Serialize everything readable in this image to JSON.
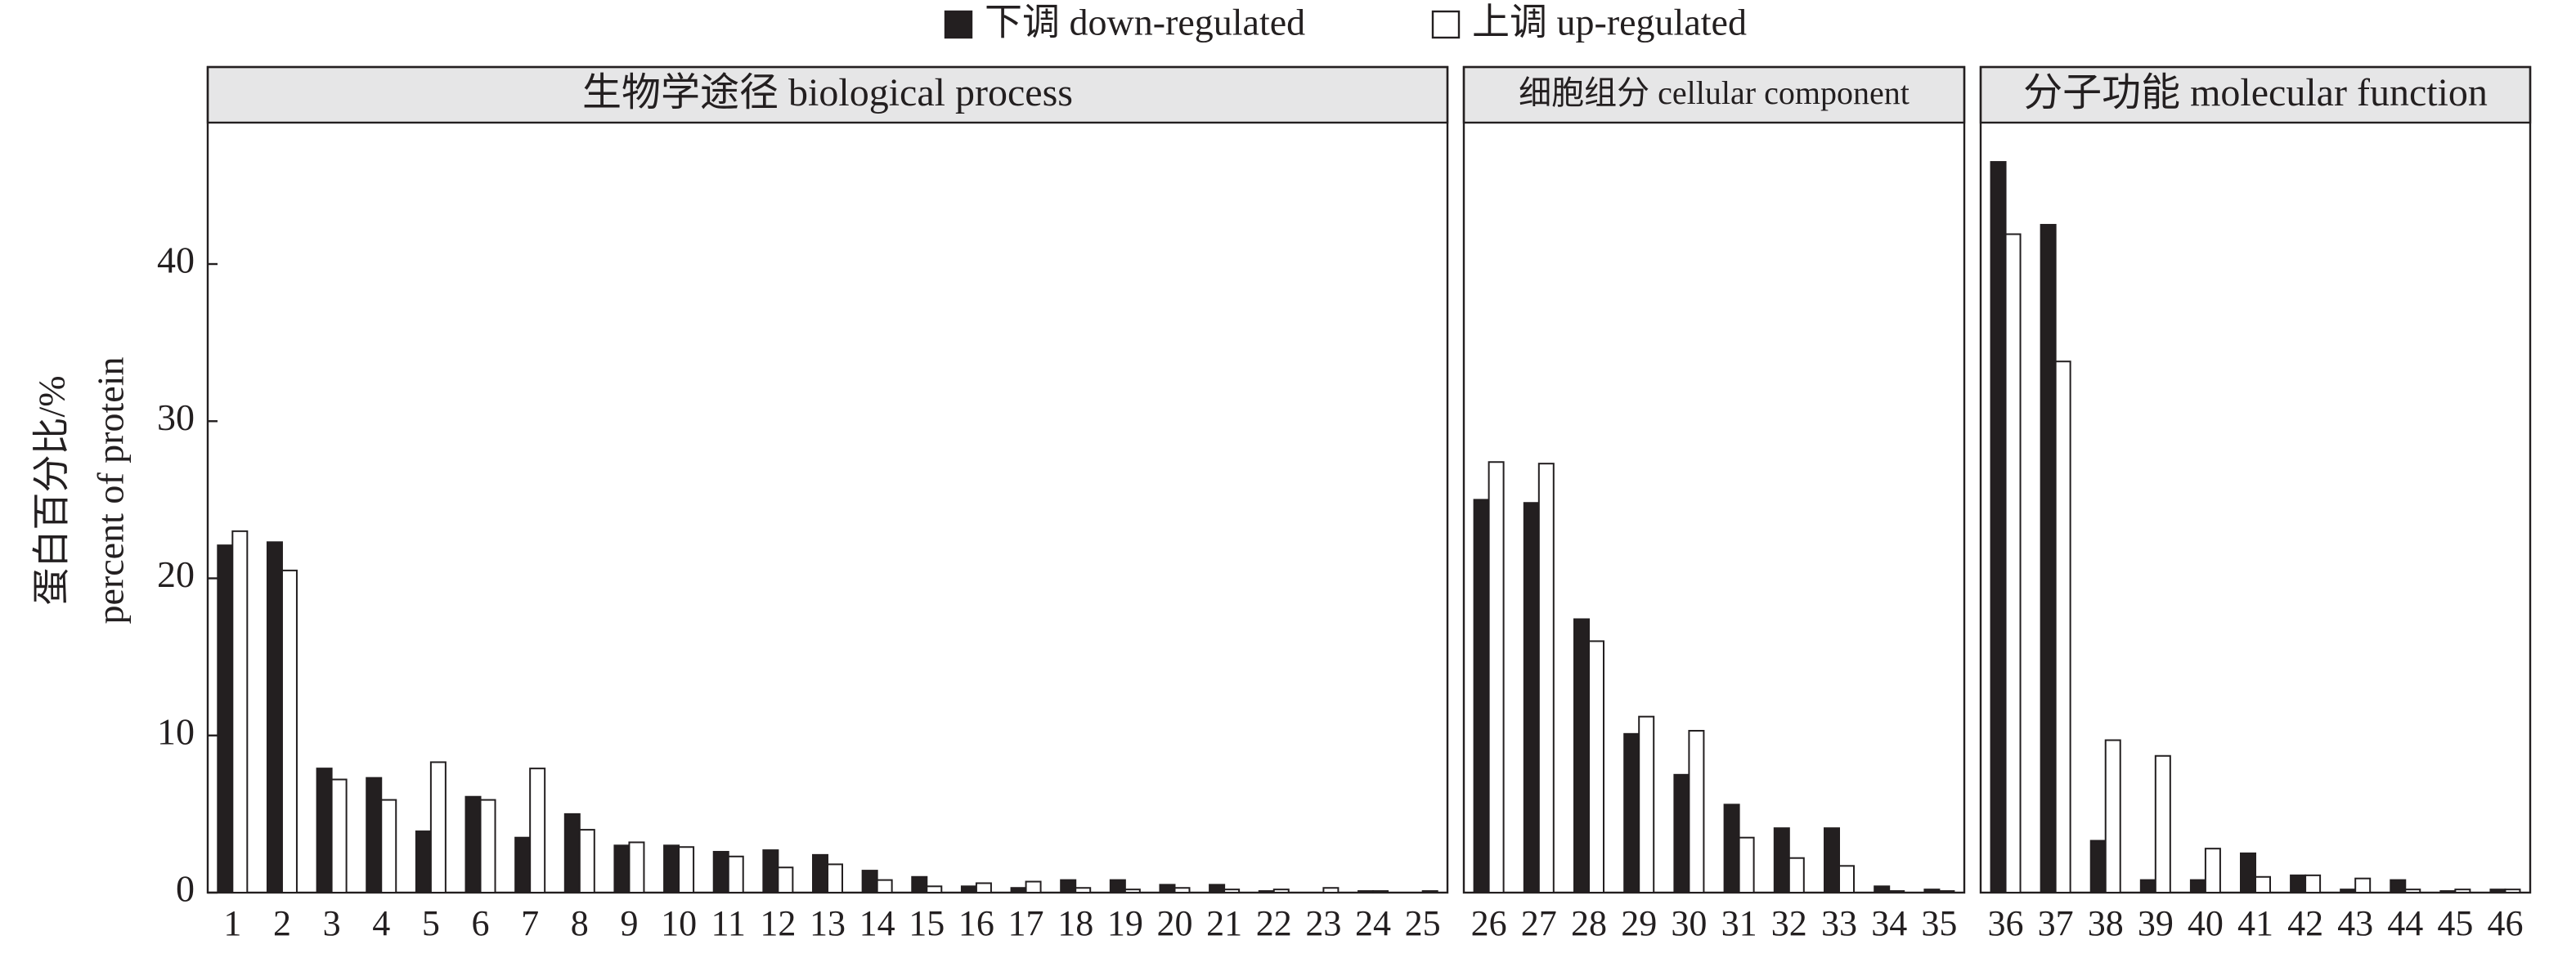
{
  "chart_data": {
    "type": "bar",
    "y_label": [
      "蛋白百分比/%",
      "percent of protein"
    ],
    "ylim": [
      0,
      49
    ],
    "yticks": [
      0,
      10,
      20,
      30,
      40
    ],
    "series": [
      {
        "name": "下调 down-regulated",
        "color": "#231f20"
      },
      {
        "name": "上调 up-regulated",
        "color": "#ffffff"
      }
    ],
    "panels": [
      {
        "title": "生物学途径 biological process",
        "categories": [
          "1",
          "2",
          "3",
          "4",
          "5",
          "6",
          "7",
          "8",
          "9",
          "10",
          "11",
          "12",
          "13",
          "14",
          "15",
          "16",
          "17",
          "18",
          "19",
          "20",
          "21",
          "22",
          "23",
          "24",
          "25"
        ],
        "series": [
          {
            "values": [
              22.1,
              22.3,
              7.9,
              7.3,
              3.9,
              6.1,
              3.5,
              5.0,
              3.0,
              3.0,
              2.6,
              2.7,
              2.4,
              1.4,
              1.0,
              0.4,
              0.3,
              0.8,
              0.8,
              0.5,
              0.5,
              0.1,
              0.0,
              0.1,
              0.0
            ]
          },
          {
            "values": [
              23.0,
              20.5,
              7.2,
              5.9,
              8.3,
              5.9,
              7.9,
              4.0,
              3.2,
              2.9,
              2.3,
              1.6,
              1.8,
              0.8,
              0.4,
              0.6,
              0.7,
              0.3,
              0.2,
              0.3,
              0.2,
              0.2,
              0.3,
              0.1,
              0.1
            ]
          }
        ]
      },
      {
        "title": "细胞组分 cellular component",
        "categories": [
          "26",
          "27",
          "28",
          "29",
          "30",
          "31",
          "32",
          "33",
          "34",
          "35"
        ],
        "series": [
          {
            "values": [
              25.0,
              24.8,
              17.4,
              10.1,
              7.5,
              5.6,
              4.1,
              4.1,
              0.4,
              0.2
            ]
          },
          {
            "values": [
              27.4,
              27.3,
              16.0,
              11.2,
              10.3,
              3.5,
              2.2,
              1.7,
              0.1,
              0.1
            ]
          }
        ]
      },
      {
        "title": "分子功能 molecular function",
        "categories": [
          "36",
          "37",
          "38",
          "39",
          "40",
          "41",
          "42",
          "43",
          "44",
          "45",
          "46"
        ],
        "series": [
          {
            "values": [
              46.5,
              42.5,
              3.3,
              0.8,
              0.8,
              2.5,
              1.1,
              0.2,
              0.8,
              0.1,
              0.2
            ]
          },
          {
            "values": [
              41.9,
              33.8,
              9.7,
              8.7,
              2.8,
              1.0,
              1.1,
              0.9,
              0.2,
              0.2,
              0.2
            ]
          }
        ]
      }
    ]
  }
}
